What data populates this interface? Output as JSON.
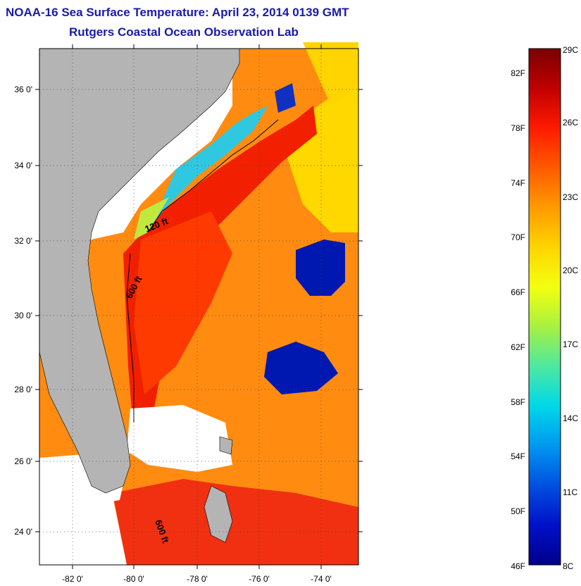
{
  "title": {
    "line1": "NOAA-16 Sea Surface Temperature:  April 23, 2014 0139 GMT",
    "line2": "Rutgers Coastal Ocean Observation Lab"
  },
  "map": {
    "lat_ticks": [
      "36 0'",
      "34 0'",
      "32 0'",
      "30 0'",
      "28 0'",
      "26 0'",
      "24 0'"
    ],
    "lon_ticks": [
      "-82 0'",
      "-80 0'",
      "-78 0'",
      "-76 0'",
      "-74 0'"
    ],
    "isobaths": [
      "120 ft",
      "600 ft",
      "600 ft"
    ],
    "land_color": "#b4b4b4",
    "nodata_color": "#ffffff"
  },
  "colorbar": {
    "fahrenheit": [
      "82F",
      "78F",
      "74F",
      "70F",
      "66F",
      "62F",
      "58F",
      "54F",
      "50F",
      "46F"
    ],
    "celsius": [
      "29C",
      "26C",
      "23C",
      "20C",
      "17C",
      "14C",
      "11C",
      "8C"
    ],
    "colors": [
      "#7a0000",
      "#c00000",
      "#ff1a00",
      "#ff5a00",
      "#ff9a00",
      "#ffd400",
      "#f4ff10",
      "#a8f040",
      "#4ee8a0",
      "#00d8e8",
      "#0098f0",
      "#0050e0",
      "#0010c8",
      "#00008a"
    ]
  }
}
